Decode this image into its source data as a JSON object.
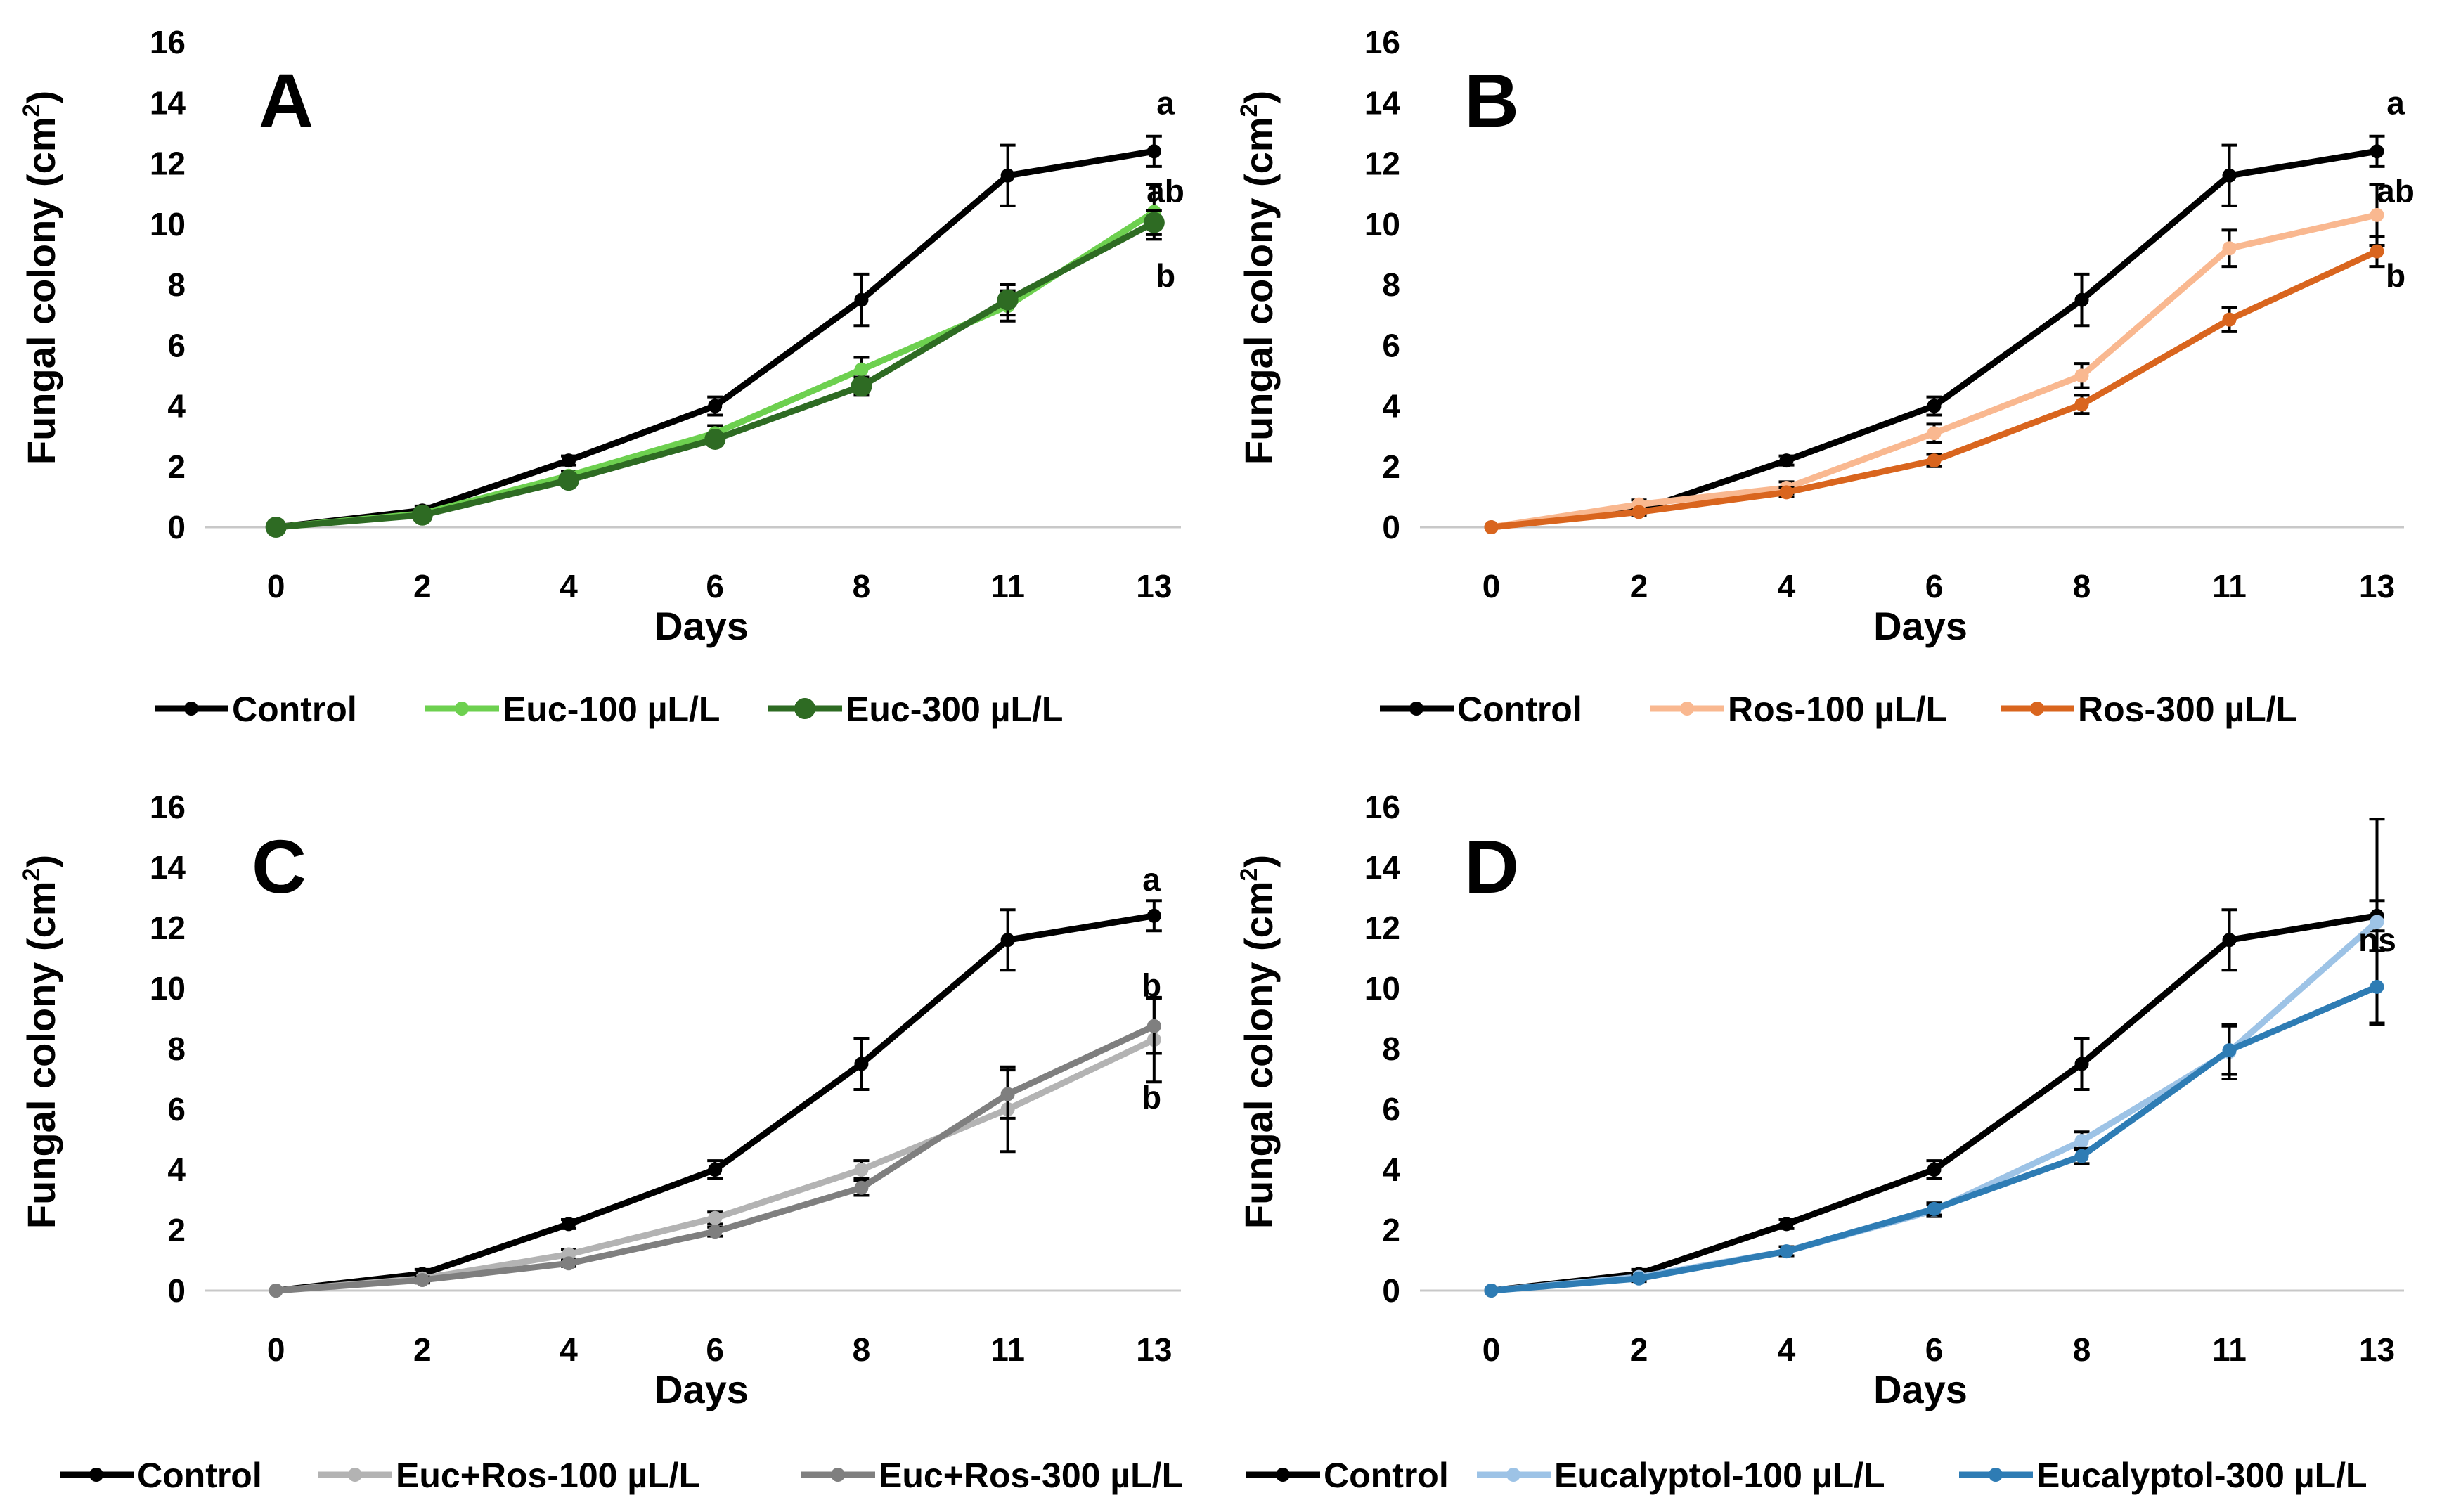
{
  "chart_data": [
    {
      "type": "line",
      "panel_label": "A",
      "xlabel": "Days",
      "ylabel_main": "Fungal colony (cm",
      "ylabel_sup": "2",
      "ylabel_end": ")",
      "categories": [
        "0",
        "2",
        "4",
        "6",
        "8",
        "11",
        "13"
      ],
      "yticks": [
        "0",
        "2",
        "4",
        "6",
        "8",
        "10",
        "12",
        "14",
        "16"
      ],
      "ylim": [
        0,
        16
      ],
      "series": [
        {
          "name": "Control",
          "color": "#000000",
          "marker": "small",
          "values": [
            0,
            0.55,
            2.2,
            4.0,
            7.5,
            11.6,
            12.4
          ],
          "errors": [
            0,
            0.15,
            0.15,
            0.3,
            0.85,
            1.0,
            0.5
          ]
        },
        {
          "name": "Euc-100 µL/L",
          "color": "#6dd04f",
          "marker": "small",
          "values": [
            0,
            0.45,
            1.7,
            3.1,
            5.2,
            7.3,
            10.4
          ],
          "errors": [
            0,
            0.1,
            0.15,
            0.25,
            0.4,
            0.5,
            0.9
          ]
        },
        {
          "name": "Euc-300 µL/L",
          "color": "#2e6b23",
          "marker": "large",
          "values": [
            0,
            0.4,
            1.55,
            2.9,
            4.65,
            7.5,
            10.05
          ],
          "errors": [
            0,
            0.1,
            0.15,
            0.2,
            0.3,
            0.5,
            0.4
          ]
        }
      ],
      "significance": [
        {
          "label": "a",
          "value": 14.0
        },
        {
          "label": "ab",
          "value": 11.1
        },
        {
          "label": "b",
          "value": 8.3
        }
      ]
    },
    {
      "type": "line",
      "panel_label": "B",
      "xlabel": "Days",
      "ylabel_main": "Fungal colony (cm",
      "ylabel_sup": "2",
      "ylabel_end": ")",
      "categories": [
        "0",
        "2",
        "4",
        "6",
        "8",
        "11",
        "13"
      ],
      "yticks": [
        "0",
        "2",
        "4",
        "6",
        "8",
        "10",
        "12",
        "14",
        "16"
      ],
      "ylim": [
        0,
        16
      ],
      "series": [
        {
          "name": "Control",
          "color": "#000000",
          "marker": "small",
          "values": [
            0,
            0.55,
            2.2,
            4.0,
            7.5,
            11.6,
            12.4
          ],
          "errors": [
            0,
            0.15,
            0.15,
            0.3,
            0.85,
            1.0,
            0.5
          ]
        },
        {
          "name": "Ros-100 µL/L",
          "color": "#f9b890",
          "marker": "small",
          "values": [
            0,
            0.75,
            1.3,
            3.1,
            5.0,
            9.2,
            10.3
          ],
          "errors": [
            0,
            0.15,
            0.2,
            0.3,
            0.4,
            0.6,
            1.0
          ]
        },
        {
          "name": "Ros-300 µL/L",
          "color": "#d9651e",
          "marker": "small",
          "values": [
            0,
            0.5,
            1.15,
            2.2,
            4.05,
            6.85,
            9.1
          ],
          "errors": [
            0,
            0.1,
            0.15,
            0.2,
            0.3,
            0.4,
            0.5
          ]
        }
      ],
      "significance": [
        {
          "label": "a",
          "value": 14.0
        },
        {
          "label": "ab",
          "value": 11.1
        },
        {
          "label": "b",
          "value": 8.3
        }
      ]
    },
    {
      "type": "line",
      "panel_label": "C",
      "xlabel": "Days",
      "ylabel_main": "Fungal colony (cm",
      "ylabel_sup": "2",
      "ylabel_end": ")",
      "categories": [
        "0",
        "2",
        "4",
        "6",
        "8",
        "11",
        "13"
      ],
      "yticks": [
        "0",
        "2",
        "4",
        "6",
        "8",
        "10",
        "12",
        "14",
        "16"
      ],
      "ylim": [
        0,
        16
      ],
      "series": [
        {
          "name": "Control",
          "color": "#000000",
          "marker": "small",
          "values": [
            0,
            0.55,
            2.2,
            4.0,
            7.5,
            11.6,
            12.4
          ],
          "errors": [
            0,
            0.15,
            0.15,
            0.3,
            0.85,
            1.0,
            0.5
          ]
        },
        {
          "name": "Euc+Ros-100 µL/L",
          "color": "#b3b3b3",
          "marker": "small",
          "values": [
            0,
            0.4,
            1.2,
            2.4,
            4.0,
            6.0,
            8.3
          ],
          "errors": [
            0,
            0.1,
            0.15,
            0.2,
            0.3,
            1.4,
            1.4
          ]
        },
        {
          "name": "Euc+Ros-300 µL/L",
          "color": "#7f7f7f",
          "marker": "small",
          "values": [
            0,
            0.35,
            0.9,
            1.95,
            3.4,
            6.5,
            8.75
          ],
          "errors": [
            0,
            0.1,
            0.1,
            0.15,
            0.25,
            0.8,
            0.9
          ]
        }
      ],
      "significance": [
        {
          "label": "a",
          "value": 13.6
        },
        {
          "label": "b",
          "value": 10.1
        },
        {
          "label": "b",
          "value": 6.4
        }
      ]
    },
    {
      "type": "line",
      "panel_label": "D",
      "xlabel": "Days",
      "ylabel_main": "Fungal colony (cm",
      "ylabel_sup": "2",
      "ylabel_end": ")",
      "categories": [
        "0",
        "2",
        "4",
        "6",
        "8",
        "11",
        "13"
      ],
      "yticks": [
        "0",
        "2",
        "4",
        "6",
        "8",
        "10",
        "12",
        "14",
        "16"
      ],
      "ylim": [
        0,
        16
      ],
      "series": [
        {
          "name": "Control",
          "color": "#000000",
          "marker": "small",
          "values": [
            0,
            0.55,
            2.2,
            4.0,
            7.5,
            11.6,
            12.4
          ],
          "errors": [
            0,
            0.15,
            0.15,
            0.3,
            0.85,
            1.0,
            0.5
          ]
        },
        {
          "name": "Eucalyptol-100 µL/L",
          "color": "#9dc3e6",
          "marker": "small",
          "values": [
            0,
            0.45,
            1.3,
            2.65,
            4.95,
            7.9,
            12.2
          ],
          "errors": [
            0,
            0.1,
            0.15,
            0.2,
            0.3,
            0.9,
            3.4
          ]
        },
        {
          "name": "Eucalyptol-300 µL/L",
          "color": "#2e7cb4",
          "marker": "small",
          "values": [
            0,
            0.4,
            1.3,
            2.7,
            4.45,
            7.95,
            10.05
          ],
          "errors": [
            0,
            0.1,
            0.15,
            0.2,
            0.25,
            0.8,
            1.2
          ]
        }
      ],
      "significance": [
        {
          "label": "ns",
          "value": 11.6
        }
      ]
    }
  ]
}
